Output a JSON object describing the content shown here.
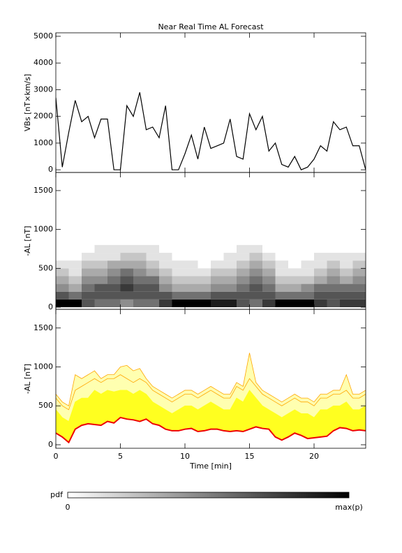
{
  "chart_data": [
    {
      "type": "line",
      "title": "Near Real Time AL Forecast",
      "ylabel": "VBs [nT×km/s]",
      "xlim": [
        0,
        24
      ],
      "xticks": [
        0,
        5,
        10,
        15,
        20
      ],
      "xtick_labels": false,
      "ylim": [
        -100,
        5130
      ],
      "yticks": [
        0,
        1000,
        2000,
        3000,
        4000,
        5000
      ],
      "x": [
        0,
        0.5,
        1,
        1.5,
        2,
        2.5,
        3,
        3.5,
        4,
        4.5,
        5,
        5.5,
        6,
        6.5,
        7,
        7.5,
        8,
        8.5,
        9,
        9.5,
        10,
        10.5,
        11,
        11.5,
        12,
        12.5,
        13,
        13.5,
        14,
        14.5,
        15,
        15.5,
        16,
        16.5,
        17,
        17.5,
        18,
        18.5,
        19,
        19.5,
        20,
        20.5,
        21,
        21.5,
        22,
        22.5,
        23,
        23.5,
        24
      ],
      "series": [
        {
          "color": "#000000",
          "values": [
            2700,
            100,
            1400,
            2600,
            1800,
            2000,
            1200,
            1900,
            1900,
            0,
            0,
            2400,
            2000,
            2900,
            1500,
            1600,
            1200,
            2400,
            0,
            0,
            600,
            1300,
            400,
            1600,
            800,
            900,
            1000,
            1900,
            500,
            400,
            2100,
            1500,
            2000,
            700,
            1000,
            200,
            100,
            500,
            0,
            100,
            400,
            900,
            700,
            1800,
            1500,
            1600,
            900,
            900,
            0
          ]
        }
      ]
    },
    {
      "type": "heatmap",
      "ylabel": "-AL [nT]",
      "xlim": [
        0,
        24
      ],
      "xticks": [
        0,
        5,
        10,
        15,
        20
      ],
      "xtick_labels": false,
      "ylim": [
        -27,
        1733
      ],
      "yticks": [
        0,
        500,
        1000,
        1500
      ],
      "xbins": [
        0,
        1,
        2,
        3,
        4,
        5,
        6,
        7,
        8,
        9,
        10,
        11,
        12,
        13,
        14,
        15,
        16,
        17,
        18,
        19,
        20,
        21,
        22,
        23,
        24
      ],
      "ybins": [
        0,
        100,
        200,
        300,
        400,
        500,
        600,
        700,
        800
      ],
      "zmax": 9,
      "z": [
        [
          9,
          6,
          4,
          3,
          2,
          1,
          0,
          0
        ],
        [
          9,
          5,
          3,
          2,
          1,
          1,
          0,
          0
        ],
        [
          6,
          6,
          5,
          4,
          3,
          2,
          1,
          0
        ],
        [
          5,
          6,
          6,
          4,
          3,
          2,
          1,
          1
        ],
        [
          5,
          6,
          6,
          5,
          4,
          3,
          1,
          1
        ],
        [
          4,
          6,
          7,
          6,
          5,
          3,
          2,
          1
        ],
        [
          5,
          6,
          6,
          5,
          4,
          3,
          2,
          1
        ],
        [
          5,
          6,
          6,
          5,
          3,
          2,
          1,
          1
        ],
        [
          7,
          6,
          4,
          3,
          2,
          1,
          1,
          0
        ],
        [
          9,
          5,
          3,
          2,
          1,
          1,
          0,
          0
        ],
        [
          9,
          5,
          3,
          2,
          1,
          1,
          0,
          0
        ],
        [
          9,
          5,
          3,
          2,
          1,
          0,
          0,
          0
        ],
        [
          8,
          6,
          4,
          3,
          2,
          1,
          0,
          0
        ],
        [
          8,
          6,
          4,
          3,
          2,
          1,
          1,
          0
        ],
        [
          6,
          6,
          5,
          4,
          3,
          2,
          1,
          1
        ],
        [
          5,
          6,
          6,
          5,
          4,
          3,
          2,
          1
        ],
        [
          7,
          6,
          5,
          4,
          3,
          2,
          1,
          0
        ],
        [
          9,
          5,
          3,
          2,
          1,
          1,
          0,
          0
        ],
        [
          9,
          5,
          3,
          2,
          1,
          0,
          0,
          0
        ],
        [
          9,
          5,
          4,
          2,
          1,
          1,
          0,
          0
        ],
        [
          7,
          6,
          5,
          3,
          2,
          1,
          1,
          0
        ],
        [
          6,
          6,
          5,
          4,
          3,
          2,
          1,
          0
        ],
        [
          7,
          6,
          5,
          3,
          2,
          1,
          1,
          0
        ],
        [
          7,
          6,
          5,
          4,
          3,
          2,
          1,
          0
        ]
      ]
    },
    {
      "type": "area",
      "ylabel": "-AL [nT]",
      "xlabel": "Time [min]",
      "xlim": [
        0,
        24
      ],
      "xticks": [
        0,
        5,
        10,
        15,
        20
      ],
      "xtick_labels": true,
      "ylim": [
        -45,
        1740
      ],
      "yticks": [
        0,
        500,
        1000,
        1500
      ],
      "x": [
        0,
        0.5,
        1,
        1.5,
        2,
        2.5,
        3,
        3.5,
        4,
        4.5,
        5,
        5.5,
        6,
        6.5,
        7,
        7.5,
        8,
        8.5,
        9,
        9.5,
        10,
        10.5,
        11,
        11.5,
        12,
        12.5,
        13,
        13.5,
        14,
        14.5,
        15,
        15.5,
        16,
        16.5,
        17,
        17.5,
        18,
        18.5,
        19,
        19.5,
        20,
        20.5,
        21,
        21.5,
        22,
        22.5,
        23,
        23.5,
        24
      ],
      "series": [
        {
          "color": "#ffa500",
          "fill": "#ffffb0",
          "values": [
            650,
            550,
            500,
            900,
            850,
            900,
            950,
            850,
            900,
            900,
            1000,
            1020,
            950,
            980,
            850,
            750,
            700,
            650,
            600,
            650,
            700,
            700,
            650,
            700,
            750,
            700,
            650,
            650,
            800,
            750,
            1180,
            800,
            700,
            650,
            600,
            550,
            600,
            650,
            600,
            600,
            550,
            650,
            650,
            700,
            700,
            900,
            650,
            650,
            700
          ]
        },
        {
          "color": "#ffa500",
          "fill": "#ffffb0",
          "values": [
            600,
            500,
            450,
            700,
            750,
            800,
            850,
            800,
            850,
            850,
            900,
            850,
            800,
            850,
            800,
            700,
            650,
            600,
            550,
            600,
            650,
            650,
            600,
            650,
            700,
            650,
            600,
            600,
            750,
            700,
            850,
            750,
            650,
            600,
            550,
            500,
            550,
            600,
            550,
            550,
            500,
            600,
            600,
            650,
            650,
            700,
            600,
            600,
            650
          ]
        },
        {
          "color": "#ffff20",
          "fill": "#ffff20",
          "values": [
            450,
            350,
            300,
            550,
            600,
            600,
            700,
            650,
            700,
            680,
            700,
            700,
            650,
            700,
            650,
            550,
            500,
            450,
            400,
            450,
            500,
            500,
            450,
            500,
            550,
            500,
            450,
            450,
            600,
            550,
            700,
            600,
            500,
            450,
            400,
            350,
            400,
            450,
            400,
            400,
            350,
            450,
            450,
            500,
            500,
            550,
            450,
            450,
            500
          ]
        },
        {
          "color": "#ee0000",
          "fill": "#ffffff",
          "values": [
            150,
            100,
            30,
            200,
            250,
            270,
            260,
            250,
            300,
            280,
            350,
            330,
            320,
            300,
            330,
            270,
            250,
            200,
            180,
            180,
            200,
            210,
            170,
            180,
            200,
            200,
            180,
            170,
            180,
            170,
            200,
            230,
            210,
            200,
            100,
            60,
            100,
            150,
            120,
            80,
            90,
            100,
            110,
            180,
            220,
            210,
            180,
            190,
            180
          ]
        }
      ]
    }
  ],
  "colorbar": {
    "label": "pdf",
    "min_label": "0",
    "max_label": "max(p)"
  }
}
